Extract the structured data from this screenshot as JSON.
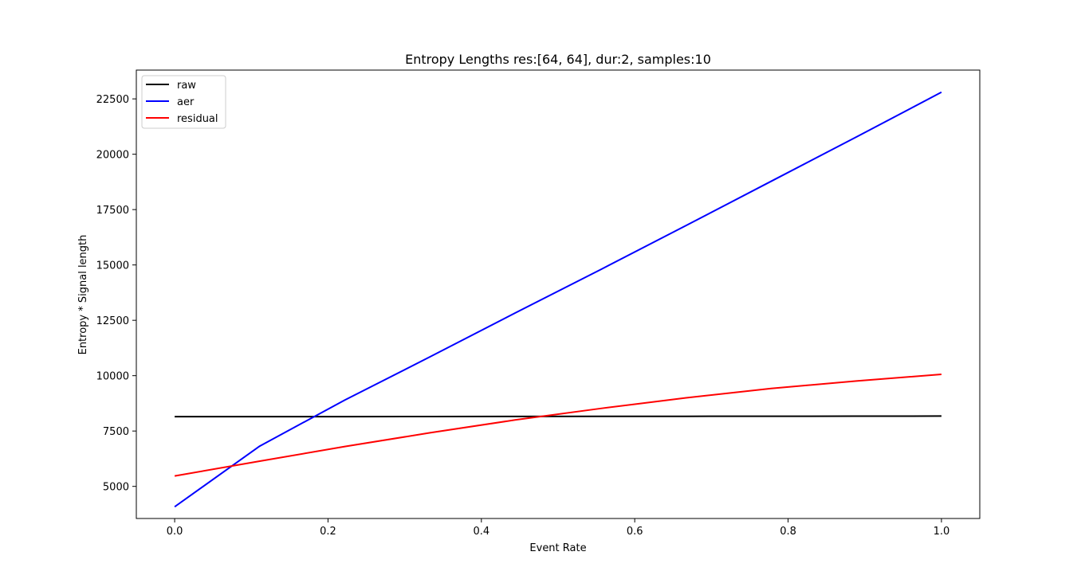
{
  "chart_data": {
    "type": "line",
    "title": "Entropy Lengths res:[64, 64], dur:2, samples:10",
    "xlabel": "Event Rate",
    "ylabel": "Entropy * Signal length",
    "xlim": [
      -0.05,
      1.05
    ],
    "ylim": [
      3550,
      23800
    ],
    "x_ticks": [
      0.0,
      0.2,
      0.4,
      0.6,
      0.8,
      1.0
    ],
    "x_tick_labels": [
      "0.0",
      "0.2",
      "0.4",
      "0.6",
      "0.8",
      "1.0"
    ],
    "y_ticks": [
      5000,
      7500,
      10000,
      12500,
      15000,
      17500,
      20000,
      22500
    ],
    "y_tick_labels": [
      "5000",
      "7500",
      "10000",
      "12500",
      "15000",
      "17500",
      "20000",
      "22500"
    ],
    "grid": false,
    "legend_position": "top-left",
    "series": [
      {
        "name": "raw",
        "color": "#000000",
        "x": [
          0.0,
          0.111,
          0.222,
          0.333,
          0.444,
          0.556,
          0.667,
          0.778,
          0.889,
          1.0
        ],
        "y": [
          8150,
          8148,
          8150,
          8155,
          8160,
          8163,
          8165,
          8168,
          8170,
          8175
        ]
      },
      {
        "name": "aer",
        "color": "#0000ff",
        "x": [
          0.0,
          0.111,
          0.222,
          0.333,
          0.444,
          0.556,
          0.667,
          0.778,
          0.889,
          1.0
        ],
        "y": [
          4080,
          6820,
          8900,
          10850,
          12830,
          14800,
          16780,
          18780,
          20780,
          22800
        ]
      },
      {
        "name": "residual",
        "color": "#ff0000",
        "x": [
          0.0,
          0.111,
          0.222,
          0.333,
          0.444,
          0.556,
          0.667,
          0.778,
          0.889,
          1.0
        ],
        "y": [
          5470,
          6140,
          6800,
          7420,
          8000,
          8520,
          9000,
          9420,
          9760,
          10060
        ]
      }
    ]
  }
}
